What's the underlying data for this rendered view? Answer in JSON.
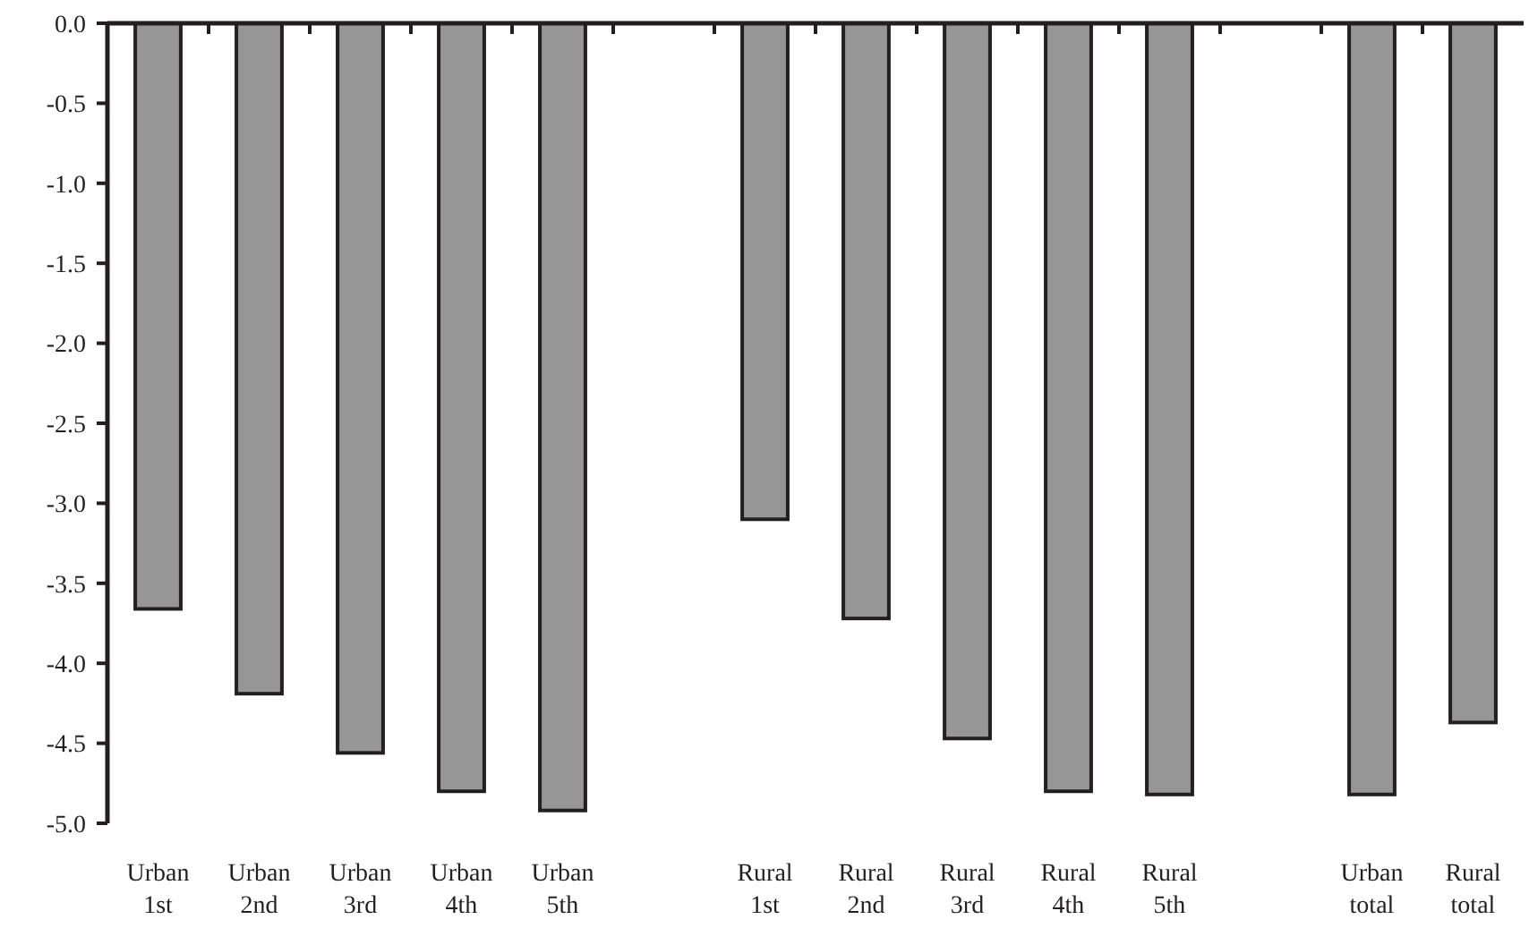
{
  "chart_data": {
    "type": "bar",
    "categories": [
      "Urban\n1st",
      "Urban\n2nd",
      "Urban\n3rd",
      "Urban\n4th",
      "Urban\n5th",
      null,
      "Rural\n1st",
      "Rural\n2nd",
      "Rural\n3rd",
      "Rural\n4th",
      "Rural\n5th",
      null,
      "Urban\ntotal",
      "Rural\ntotal"
    ],
    "values": [
      -3.66,
      -4.19,
      -4.56,
      -4.8,
      -4.92,
      null,
      -3.1,
      -3.72,
      -4.47,
      -4.8,
      -4.82,
      null,
      -4.82,
      -4.37
    ],
    "color": "#969696",
    "ylim": [
      -5,
      0
    ],
    "yticks": [
      {
        "value": 0,
        "label": "0.0"
      },
      -0.5,
      {
        "value": -1,
        "label": "-1.0"
      },
      -1.5,
      {
        "value": -2,
        "label": "-2.0"
      },
      -2.5,
      {
        "value": -3,
        "label": "-3.0"
      },
      -3.5,
      {
        "value": -4,
        "label": "-4.0"
      },
      -4.5,
      {
        "value": -5,
        "label": "-5.0"
      }
    ],
    "grid": false
  }
}
